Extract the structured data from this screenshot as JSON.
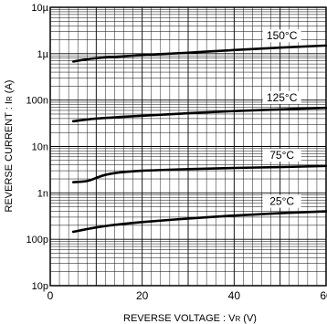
{
  "chart_data": {
    "type": "line",
    "title": "",
    "xlabel": "REVERSE  VOLTAGE : V",
    "xlabel_sub": "R",
    "xlabel_unit": " (V)",
    "ylabel": "REVERSE  CURRENT : I",
    "ylabel_sub": "R",
    "ylabel_unit": " (A)",
    "x_scale": "linear",
    "y_scale": "log",
    "xlim": [
      0,
      60
    ],
    "ylim": [
      1e-11,
      1e-05
    ],
    "x_ticks": [
      0,
      20,
      40,
      60
    ],
    "x_tick_labels": [
      "0",
      "20",
      "40",
      "60"
    ],
    "y_ticks": [
      1e-11,
      1e-10,
      1e-09,
      1e-08,
      1e-07,
      1e-06,
      1e-05
    ],
    "y_tick_labels": [
      "10p",
      "100p",
      "1n",
      "10n",
      "100n",
      "1µ",
      "10µ"
    ],
    "grid": true,
    "series": [
      {
        "name": "150°C",
        "x": [
          5,
          10,
          20,
          30,
          40,
          50,
          60
        ],
        "y": [
          6.8e-07,
          8e-07,
          9.3e-07,
          1.05e-06,
          1.2e-06,
          1.35e-06,
          1.5e-06
        ]
      },
      {
        "name": "125°C",
        "x": [
          5,
          10,
          20,
          30,
          40,
          50,
          60
        ],
        "y": [
          3.5e-08,
          4e-08,
          4.6e-08,
          5.2e-08,
          5.8e-08,
          6.3e-08,
          6.8e-08
        ]
      },
      {
        "name": "75°C",
        "x": [
          5,
          8,
          10,
          12,
          15,
          20,
          30,
          40,
          50,
          60
        ],
        "y": [
          1.7e-09,
          1.8e-09,
          2.1e-09,
          2.45e-09,
          2.75e-09,
          3e-09,
          3.25e-09,
          3.45e-09,
          3.6e-09,
          3.8e-09
        ]
      },
      {
        "name": "25°C",
        "x": [
          5,
          10,
          15,
          20,
          30,
          40,
          50,
          60
        ],
        "y": [
          1.45e-10,
          1.8e-10,
          2.1e-10,
          2.35e-10,
          2.8e-10,
          3.25e-10,
          3.65e-10,
          4e-10
        ]
      }
    ]
  }
}
